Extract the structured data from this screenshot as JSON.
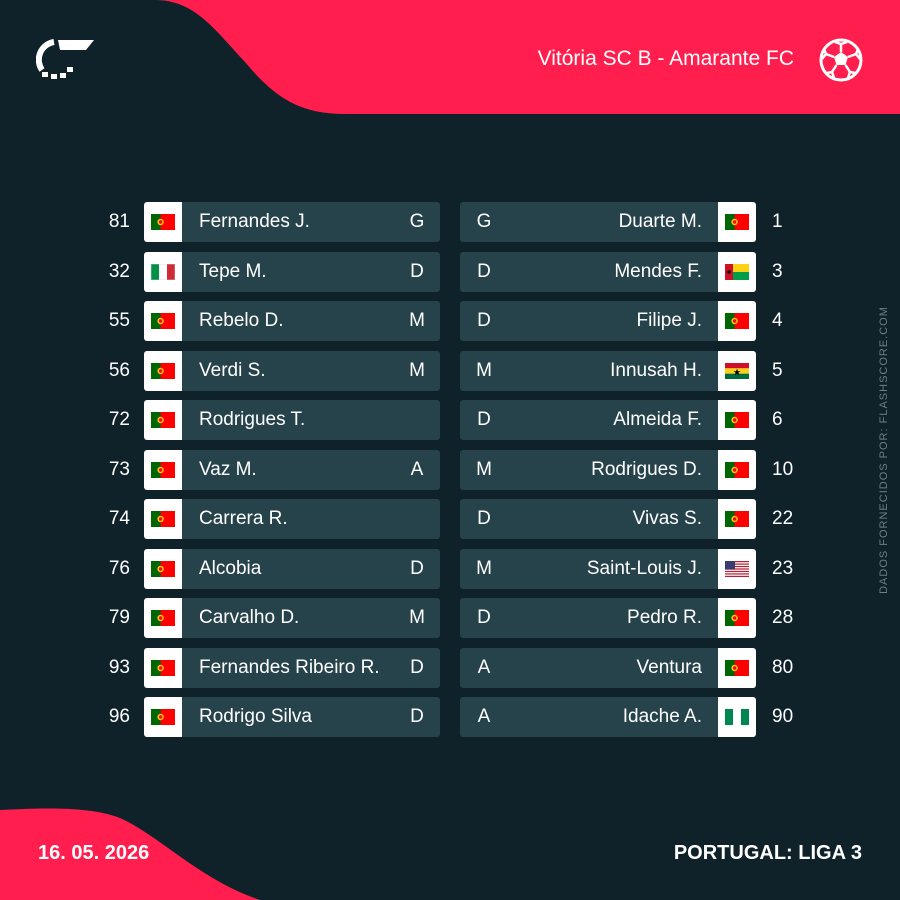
{
  "header": {
    "match_title": "Vitória SC B - Amarante FC",
    "brand_color": "#ff1e4d",
    "ball_icon": "football-icon",
    "logo_icon": "flashscore-logo-icon"
  },
  "side_credit": "DADOS FORNECIDOS POR: FLASHSCORE.COM",
  "footer": {
    "date": "16. 05. 2026",
    "competition": "PORTUGAL: LIGA 3"
  },
  "colors": {
    "background": "#0f2129",
    "row_bar": "#26424b",
    "accent": "#ff1e4d"
  },
  "home_players": [
    {
      "number": "81",
      "name": "Fernandes J.",
      "position": "G",
      "flag": "portugal-flag-icon"
    },
    {
      "number": "32",
      "name": "Tepe M.",
      "position": "D",
      "flag": "italy-flag-icon"
    },
    {
      "number": "55",
      "name": "Rebelo D.",
      "position": "M",
      "flag": "portugal-flag-icon"
    },
    {
      "number": "56",
      "name": "Verdi S.",
      "position": "M",
      "flag": "portugal-flag-icon"
    },
    {
      "number": "72",
      "name": "Rodrigues T.",
      "position": "",
      "flag": "portugal-flag-icon"
    },
    {
      "number": "73",
      "name": "Vaz M.",
      "position": "A",
      "flag": "portugal-flag-icon"
    },
    {
      "number": "74",
      "name": "Carrera R.",
      "position": "",
      "flag": "portugal-flag-icon"
    },
    {
      "number": "76",
      "name": "Alcobia",
      "position": "D",
      "flag": "portugal-flag-icon"
    },
    {
      "number": "79",
      "name": "Carvalho D.",
      "position": "M",
      "flag": "portugal-flag-icon"
    },
    {
      "number": "93",
      "name": "Fernandes Ribeiro R.",
      "position": "D",
      "flag": "portugal-flag-icon"
    },
    {
      "number": "96",
      "name": "Rodrigo Silva",
      "position": "D",
      "flag": "portugal-flag-icon"
    }
  ],
  "away_players": [
    {
      "number": "1",
      "name": "Duarte M.",
      "position": "G",
      "flag": "portugal-flag-icon"
    },
    {
      "number": "3",
      "name": "Mendes F.",
      "position": "D",
      "flag": "guinea-bissau-flag-icon"
    },
    {
      "number": "4",
      "name": "Filipe J.",
      "position": "D",
      "flag": "portugal-flag-icon"
    },
    {
      "number": "5",
      "name": "Innusah H.",
      "position": "M",
      "flag": "ghana-flag-icon"
    },
    {
      "number": "6",
      "name": "Almeida F.",
      "position": "D",
      "flag": "portugal-flag-icon"
    },
    {
      "number": "10",
      "name": "Rodrigues D.",
      "position": "M",
      "flag": "portugal-flag-icon"
    },
    {
      "number": "22",
      "name": "Vivas S.",
      "position": "D",
      "flag": "portugal-flag-icon"
    },
    {
      "number": "23",
      "name": "Saint-Louis J.",
      "position": "M",
      "flag": "usa-flag-icon"
    },
    {
      "number": "28",
      "name": "Pedro R.",
      "position": "D",
      "flag": "portugal-flag-icon"
    },
    {
      "number": "80",
      "name": "Ventura",
      "position": "A",
      "flag": "portugal-flag-icon"
    },
    {
      "number": "90",
      "name": "Idache A.",
      "position": "A",
      "flag": "nigeria-flag-icon"
    }
  ]
}
